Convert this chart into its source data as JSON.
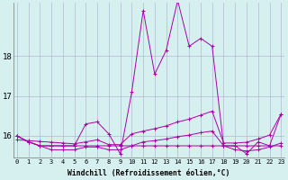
{
  "title": "",
  "xlabel": "Windchill (Refroidissement éolien,°C)",
  "ylabel": "",
  "bg_color": "#d6f0f0",
  "line_color": "#aa00aa",
  "grid_color": "#aaaacc",
  "ylim": [
    15.45,
    19.35
  ],
  "xlim": [
    -0.3,
    23.3
  ],
  "yticks": [
    16,
    17,
    18
  ],
  "xticks": [
    0,
    1,
    2,
    3,
    4,
    5,
    6,
    7,
    8,
    9,
    10,
    11,
    12,
    13,
    14,
    15,
    16,
    17,
    18,
    19,
    20,
    21,
    22,
    23
  ],
  "series": [
    [
      16.0,
      15.85,
      15.75,
      15.75,
      15.75,
      15.75,
      16.3,
      16.35,
      16.05,
      15.55,
      17.1,
      19.15,
      17.55,
      18.15,
      19.4,
      18.25,
      18.45,
      18.25,
      15.75,
      15.75,
      15.55,
      15.85,
      15.75,
      16.55
    ],
    [
      16.0,
      15.85,
      15.75,
      15.75,
      15.75,
      15.75,
      15.75,
      15.75,
      15.75,
      15.75,
      15.75,
      15.75,
      15.75,
      15.75,
      15.75,
      15.75,
      15.75,
      15.75,
      15.75,
      15.75,
      15.75,
      15.75,
      15.75,
      15.75
    ],
    [
      15.9,
      15.88,
      15.86,
      15.84,
      15.82,
      15.8,
      15.85,
      15.9,
      15.78,
      15.78,
      16.05,
      16.12,
      16.18,
      16.25,
      16.35,
      16.42,
      16.52,
      16.62,
      15.82,
      15.82,
      15.84,
      15.92,
      16.02,
      16.55
    ],
    [
      16.0,
      15.85,
      15.75,
      15.65,
      15.65,
      15.65,
      15.72,
      15.72,
      15.65,
      15.65,
      15.75,
      15.85,
      15.88,
      15.92,
      15.98,
      16.02,
      16.08,
      16.12,
      15.75,
      15.65,
      15.62,
      15.65,
      15.72,
      15.82
    ]
  ],
  "figsize": [
    3.2,
    2.0
  ],
  "dpi": 100
}
